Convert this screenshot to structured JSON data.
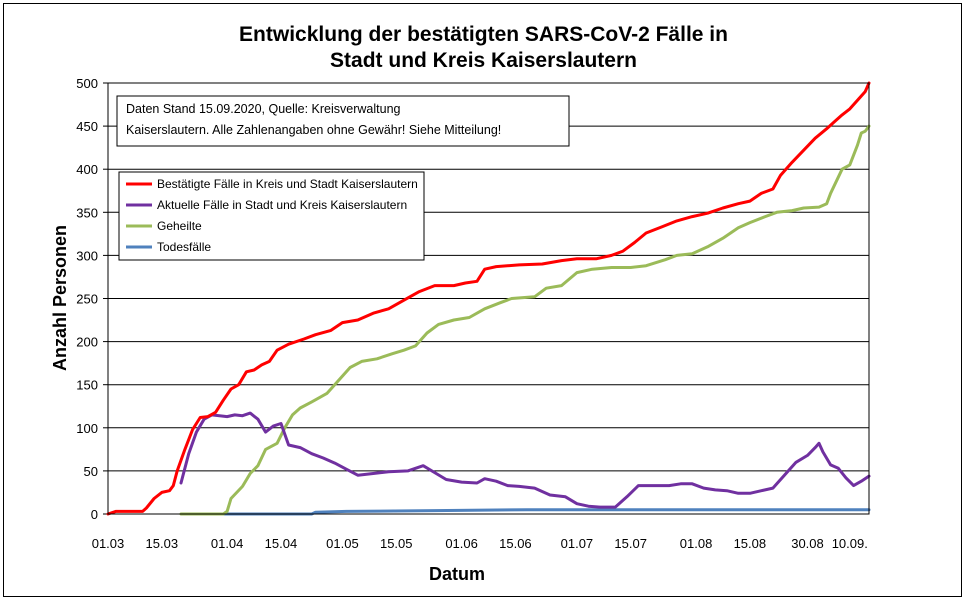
{
  "chart_data": {
    "type": "line",
    "title_lines": [
      "Entwicklung der bestätigten SARS-CoV-2 Fälle in",
      "Stadt und Kreis Kaiserslautern"
    ],
    "xlabel": "Datum",
    "ylabel": "Anzahl Personen",
    "ylim": [
      0,
      500
    ],
    "yticks": [
      0,
      50,
      100,
      150,
      200,
      250,
      300,
      350,
      400,
      450,
      500
    ],
    "xlim": [
      "2020-03-01",
      "2020-09-15"
    ],
    "xticks": [
      {
        "date": "2020-03-01",
        "label": "01.03"
      },
      {
        "date": "2020-03-15",
        "label": "15.03"
      },
      {
        "date": "2020-04-01",
        "label": "01.04"
      },
      {
        "date": "2020-04-15",
        "label": "15.04"
      },
      {
        "date": "2020-05-01",
        "label": "01.05"
      },
      {
        "date": "2020-05-15",
        "label": "15.05"
      },
      {
        "date": "2020-06-01",
        "label": "01.06"
      },
      {
        "date": "2020-06-15",
        "label": "15.06"
      },
      {
        "date": "2020-07-01",
        "label": "01.07"
      },
      {
        "date": "2020-07-15",
        "label": "15.07"
      },
      {
        "date": "2020-08-01",
        "label": "01.08"
      },
      {
        "date": "2020-08-15",
        "label": "15.08"
      },
      {
        "date": "2020-08-30",
        "label": "30.08"
      },
      {
        "date": "2020-09-10",
        "label": "10.09."
      }
    ],
    "grid": "horizontal",
    "annotation": [
      "Daten Stand 15.09.2020, Quelle: Kreisverwaltung",
      "Kaiserslautern. Alle Zahlenangaben ohne Gewähr! Siehe Mitteilung!"
    ],
    "legend_position": "top-left",
    "series": [
      {
        "name": "Bestätigte Fälle in Kreis und Stadt Kaiserslautern",
        "color": "#ff0000",
        "points": [
          [
            "2020-03-01",
            0
          ],
          [
            "2020-03-03",
            3
          ],
          [
            "2020-03-10",
            3
          ],
          [
            "2020-03-11",
            7
          ],
          [
            "2020-03-13",
            18
          ],
          [
            "2020-03-15",
            25
          ],
          [
            "2020-03-17",
            27
          ],
          [
            "2020-03-18",
            33
          ],
          [
            "2020-03-19",
            50
          ],
          [
            "2020-03-21",
            75
          ],
          [
            "2020-03-23",
            98
          ],
          [
            "2020-03-25",
            112
          ],
          [
            "2020-03-27",
            113
          ],
          [
            "2020-03-29",
            118
          ],
          [
            "2020-03-31",
            132
          ],
          [
            "2020-04-02",
            145
          ],
          [
            "2020-04-04",
            150
          ],
          [
            "2020-04-06",
            165
          ],
          [
            "2020-04-08",
            167
          ],
          [
            "2020-04-10",
            173
          ],
          [
            "2020-04-12",
            177
          ],
          [
            "2020-04-14",
            190
          ],
          [
            "2020-04-17",
            197
          ],
          [
            "2020-04-21",
            203
          ],
          [
            "2020-04-24",
            208
          ],
          [
            "2020-04-28",
            213
          ],
          [
            "2020-05-01",
            222
          ],
          [
            "2020-05-05",
            225
          ],
          [
            "2020-05-09",
            233
          ],
          [
            "2020-05-13",
            238
          ],
          [
            "2020-05-17",
            248
          ],
          [
            "2020-05-21",
            258
          ],
          [
            "2020-05-25",
            265
          ],
          [
            "2020-05-30",
            265
          ],
          [
            "2020-06-02",
            268
          ],
          [
            "2020-06-05",
            270
          ],
          [
            "2020-06-07",
            284
          ],
          [
            "2020-06-10",
            287
          ],
          [
            "2020-06-16",
            289
          ],
          [
            "2020-06-22",
            290
          ],
          [
            "2020-06-27",
            294
          ],
          [
            "2020-07-01",
            296
          ],
          [
            "2020-07-06",
            296
          ],
          [
            "2020-07-10",
            300
          ],
          [
            "2020-07-13",
            305
          ],
          [
            "2020-07-16",
            315
          ],
          [
            "2020-07-19",
            326
          ],
          [
            "2020-07-23",
            333
          ],
          [
            "2020-07-27",
            340
          ],
          [
            "2020-07-31",
            345
          ],
          [
            "2020-08-04",
            349
          ],
          [
            "2020-08-08",
            355
          ],
          [
            "2020-08-12",
            360
          ],
          [
            "2020-08-15",
            363
          ],
          [
            "2020-08-18",
            372
          ],
          [
            "2020-08-21",
            377
          ],
          [
            "2020-08-23",
            393
          ],
          [
            "2020-08-26",
            408
          ],
          [
            "2020-08-29",
            422
          ],
          [
            "2020-09-01",
            436
          ],
          [
            "2020-09-04",
            447
          ],
          [
            "2020-09-06",
            455
          ],
          [
            "2020-09-08",
            463
          ],
          [
            "2020-09-10",
            470
          ],
          [
            "2020-09-12",
            480
          ],
          [
            "2020-09-14",
            490
          ],
          [
            "2020-09-15",
            500
          ]
        ]
      },
      {
        "name": "Aktuelle Fälle in Stadt und Kreis Kaiserslautern",
        "color": "#7030a0",
        "points": [
          [
            "2020-03-20",
            36
          ],
          [
            "2020-03-22",
            70
          ],
          [
            "2020-03-24",
            95
          ],
          [
            "2020-03-26",
            110
          ],
          [
            "2020-03-28",
            115
          ],
          [
            "2020-03-30",
            114
          ],
          [
            "2020-04-01",
            113
          ],
          [
            "2020-04-03",
            115
          ],
          [
            "2020-04-05",
            114
          ],
          [
            "2020-04-07",
            117
          ],
          [
            "2020-04-09",
            110
          ],
          [
            "2020-04-11",
            95
          ],
          [
            "2020-04-13",
            102
          ],
          [
            "2020-04-15",
            105
          ],
          [
            "2020-04-17",
            80
          ],
          [
            "2020-04-20",
            77
          ],
          [
            "2020-04-23",
            70
          ],
          [
            "2020-04-26",
            65
          ],
          [
            "2020-04-29",
            59
          ],
          [
            "2020-05-02",
            52
          ],
          [
            "2020-05-05",
            45
          ],
          [
            "2020-05-09",
            47
          ],
          [
            "2020-05-13",
            49
          ],
          [
            "2020-05-18",
            50
          ],
          [
            "2020-05-22",
            56
          ],
          [
            "2020-05-25",
            48
          ],
          [
            "2020-05-28",
            40
          ],
          [
            "2020-06-01",
            37
          ],
          [
            "2020-06-05",
            36
          ],
          [
            "2020-06-07",
            41
          ],
          [
            "2020-06-10",
            38
          ],
          [
            "2020-06-13",
            33
          ],
          [
            "2020-06-16",
            32
          ],
          [
            "2020-06-20",
            30
          ],
          [
            "2020-06-24",
            22
          ],
          [
            "2020-06-28",
            20
          ],
          [
            "2020-07-01",
            12
          ],
          [
            "2020-07-04",
            9
          ],
          [
            "2020-07-07",
            8
          ],
          [
            "2020-07-11",
            8
          ],
          [
            "2020-07-14",
            20
          ],
          [
            "2020-07-17",
            33
          ],
          [
            "2020-07-21",
            33
          ],
          [
            "2020-07-25",
            33
          ],
          [
            "2020-07-28",
            35
          ],
          [
            "2020-07-31",
            35
          ],
          [
            "2020-08-03",
            30
          ],
          [
            "2020-08-06",
            28
          ],
          [
            "2020-08-09",
            27
          ],
          [
            "2020-08-12",
            24
          ],
          [
            "2020-08-15",
            24
          ],
          [
            "2020-08-18",
            27
          ],
          [
            "2020-08-21",
            30
          ],
          [
            "2020-08-24",
            45
          ],
          [
            "2020-08-27",
            60
          ],
          [
            "2020-08-30",
            68
          ],
          [
            "2020-09-01",
            77
          ],
          [
            "2020-09-02",
            82
          ],
          [
            "2020-09-03",
            72
          ],
          [
            "2020-09-05",
            57
          ],
          [
            "2020-09-07",
            53
          ],
          [
            "2020-09-09",
            42
          ],
          [
            "2020-09-11",
            33
          ],
          [
            "2020-09-13",
            38
          ],
          [
            "2020-09-15",
            44
          ]
        ]
      },
      {
        "name": "Geheilte",
        "color": "#9bbb59",
        "points": [
          [
            "2020-03-20",
            0
          ],
          [
            "2020-03-31",
            0
          ],
          [
            "2020-04-01",
            3
          ],
          [
            "2020-04-02",
            18
          ],
          [
            "2020-04-05",
            32
          ],
          [
            "2020-04-07",
            47
          ],
          [
            "2020-04-09",
            56
          ],
          [
            "2020-04-11",
            75
          ],
          [
            "2020-04-14",
            82
          ],
          [
            "2020-04-16",
            100
          ],
          [
            "2020-04-18",
            115
          ],
          [
            "2020-04-20",
            123
          ],
          [
            "2020-04-23",
            130
          ],
          [
            "2020-04-27",
            140
          ],
          [
            "2020-04-30",
            155
          ],
          [
            "2020-05-03",
            170
          ],
          [
            "2020-05-06",
            177
          ],
          [
            "2020-05-10",
            180
          ],
          [
            "2020-05-14",
            186
          ],
          [
            "2020-05-17",
            190
          ],
          [
            "2020-05-20",
            195
          ],
          [
            "2020-05-23",
            210
          ],
          [
            "2020-05-26",
            220
          ],
          [
            "2020-05-30",
            225
          ],
          [
            "2020-06-03",
            228
          ],
          [
            "2020-06-07",
            238
          ],
          [
            "2020-06-11",
            245
          ],
          [
            "2020-06-14",
            250
          ],
          [
            "2020-06-20",
            252
          ],
          [
            "2020-06-23",
            262
          ],
          [
            "2020-06-27",
            265
          ],
          [
            "2020-07-01",
            280
          ],
          [
            "2020-07-05",
            284
          ],
          [
            "2020-07-10",
            286
          ],
          [
            "2020-07-15",
            286
          ],
          [
            "2020-07-19",
            288
          ],
          [
            "2020-07-24",
            295
          ],
          [
            "2020-07-27",
            300
          ],
          [
            "2020-07-31",
            302
          ],
          [
            "2020-08-04",
            310
          ],
          [
            "2020-08-08",
            320
          ],
          [
            "2020-08-12",
            332
          ],
          [
            "2020-08-15",
            338
          ],
          [
            "2020-08-19",
            345
          ],
          [
            "2020-08-22",
            350
          ],
          [
            "2020-08-26",
            352
          ],
          [
            "2020-08-29",
            355
          ],
          [
            "2020-09-02",
            356
          ],
          [
            "2020-09-04",
            360
          ],
          [
            "2020-09-05",
            372
          ],
          [
            "2020-09-08",
            400
          ],
          [
            "2020-09-10",
            405
          ],
          [
            "2020-09-12",
            428
          ],
          [
            "2020-09-13",
            442
          ],
          [
            "2020-09-14",
            444
          ],
          [
            "2020-09-15",
            450
          ]
        ]
      },
      {
        "name": "Todesfälle",
        "color": "#4f81bd",
        "points": [
          [
            "2020-03-31",
            0
          ],
          [
            "2020-04-23",
            0
          ],
          [
            "2020-04-24",
            2
          ],
          [
            "2020-05-02",
            3
          ],
          [
            "2020-05-25",
            4
          ],
          [
            "2020-06-18",
            5
          ],
          [
            "2020-09-15",
            5
          ]
        ]
      }
    ]
  }
}
